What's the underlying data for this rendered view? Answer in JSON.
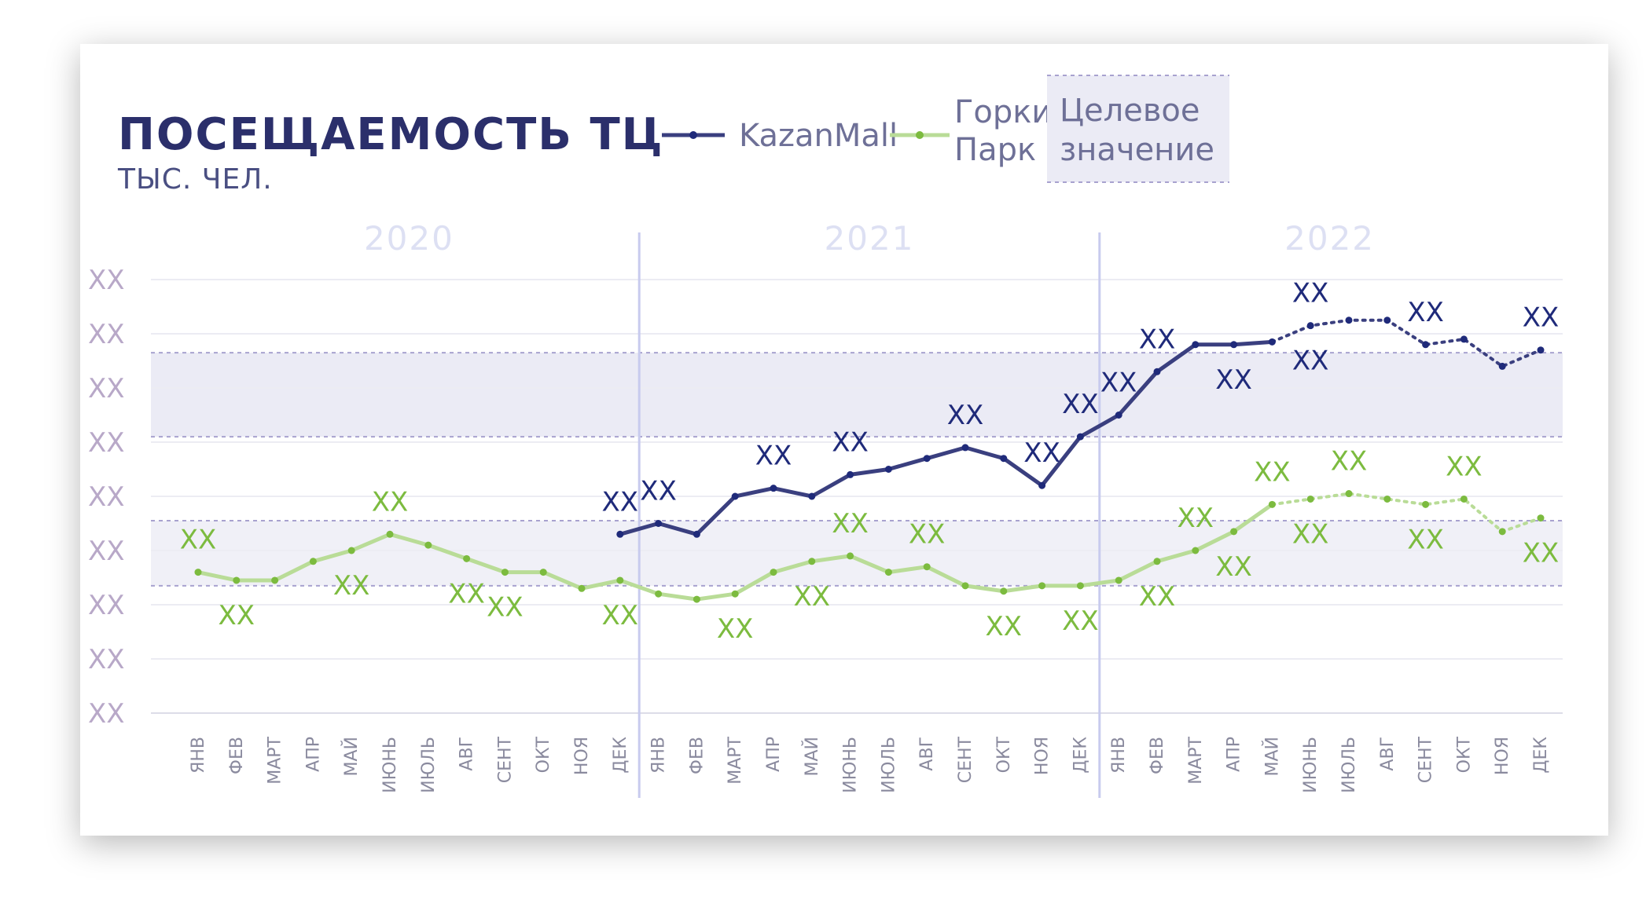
{
  "chart_data": {
    "type": "line",
    "title": "ПОСЕЩАЕМОСТЬ  ТЦ",
    "subtitle": "ТЫС. ЧЕЛ.",
    "years": [
      "2020",
      "2021",
      "2022"
    ],
    "categories": [
      "ЯНВ",
      "ФЕВ",
      "МАРТ",
      "АПР",
      "МАЙ",
      "ИЮНЬ",
      "ИЮЛЬ",
      "АВГ",
      "СЕНТ",
      "ОКТ",
      "НОЯ",
      "ДЕК",
      "ЯНВ",
      "ФЕВ",
      "МАРТ",
      "АПР",
      "МАЙ",
      "ИЮНЬ",
      "ИЮЛЬ",
      "АВГ",
      "СЕНТ",
      "ОКТ",
      "НОЯ",
      "ДЕК",
      "ЯНВ",
      "ФЕВ",
      "МАРТ",
      "АПР",
      "МАЙ",
      "ИЮНЬ",
      "ИЮЛЬ",
      "АВГ",
      "СЕНТ",
      "ОКТ",
      "НОЯ",
      "ДЕК"
    ],
    "y_tick_labels": [
      "XX",
      "XX",
      "XX",
      "XX",
      "XX",
      "XX",
      "XX",
      "XX",
      "XX"
    ],
    "ylim": [
      0,
      8
    ],
    "grid": true,
    "legend_position": "top-right",
    "forecast_from_index": 28,
    "target_bands": [
      {
        "series": "KazanMall",
        "range": [
          5.1,
          6.65
        ],
        "color": "#ebebf5"
      },
      {
        "series": "Горки Парк",
        "range": [
          2.35,
          3.55
        ],
        "color": "#f0f0f7"
      }
    ],
    "series": [
      {
        "name": "KazanMall",
        "color": "#3a3f7f",
        "label_color": "#1f2a7a",
        "values": [
          null,
          null,
          null,
          null,
          null,
          null,
          null,
          null,
          null,
          null,
          null,
          3.3,
          3.5,
          3.3,
          4.0,
          4.15,
          4.0,
          4.4,
          4.5,
          4.7,
          4.9,
          4.7,
          4.2,
          5.1,
          5.5,
          6.3,
          6.8,
          6.8,
          6.85,
          7.15,
          7.25,
          7.25,
          6.8,
          6.9,
          6.4,
          6.7
        ],
        "labels": [
          null,
          null,
          null,
          null,
          null,
          null,
          null,
          null,
          null,
          null,
          null,
          "XX",
          "XX",
          null,
          null,
          "XX",
          null,
          "XX",
          null,
          null,
          "XX",
          null,
          "XX",
          "XX",
          "XX",
          "XX",
          null,
          "XX",
          null,
          "XX",
          null,
          null,
          "XX",
          null,
          null,
          "XX"
        ],
        "label_positions": [
          null,
          null,
          null,
          null,
          null,
          null,
          null,
          null,
          null,
          null,
          null,
          "above",
          "above",
          null,
          null,
          "above",
          null,
          "above",
          null,
          null,
          "above",
          null,
          "above",
          "above",
          "above",
          "above",
          null,
          "below",
          null,
          "above-below",
          null,
          null,
          "above",
          null,
          null,
          "above"
        ]
      },
      {
        "name": "Горки Парк",
        "color": "#b9dc97",
        "label_color": "#7cbb3f",
        "values": [
          2.6,
          2.45,
          2.45,
          2.8,
          3.0,
          3.3,
          3.1,
          2.85,
          2.6,
          2.6,
          2.3,
          2.45,
          2.2,
          2.1,
          2.2,
          2.6,
          2.8,
          2.9,
          2.6,
          2.7,
          2.35,
          2.25,
          2.35,
          2.35,
          2.45,
          2.8,
          3.0,
          3.35,
          3.85,
          3.95,
          4.05,
          3.95,
          3.85,
          3.95,
          3.35,
          3.6
        ],
        "labels": [
          "XX",
          "XX",
          null,
          null,
          "XX",
          "XX",
          null,
          "XX",
          "XX",
          null,
          null,
          "XX",
          null,
          null,
          "XX",
          null,
          "XX",
          "XX",
          null,
          "XX",
          null,
          "XX",
          null,
          "XX",
          null,
          "XX",
          "XX",
          "XX",
          "XX",
          "XX",
          "XX",
          null,
          "XX",
          "XX",
          null,
          "XX"
        ],
        "label_positions": [
          "above",
          "below",
          null,
          null,
          "below",
          "above",
          null,
          "below",
          "below",
          null,
          null,
          "below",
          null,
          null,
          "below",
          null,
          "below",
          "above",
          null,
          "above",
          null,
          "below",
          null,
          "below",
          null,
          "below",
          "above",
          "below",
          "above",
          "below",
          "above",
          null,
          "below",
          "above",
          null,
          "below"
        ]
      }
    ],
    "legend": [
      {
        "label": "KazanMall",
        "color": "#3a3f7f"
      },
      {
        "label": "Горки Парк",
        "color": "#b9dc97"
      },
      {
        "label": "Целевое значение"
      }
    ]
  }
}
